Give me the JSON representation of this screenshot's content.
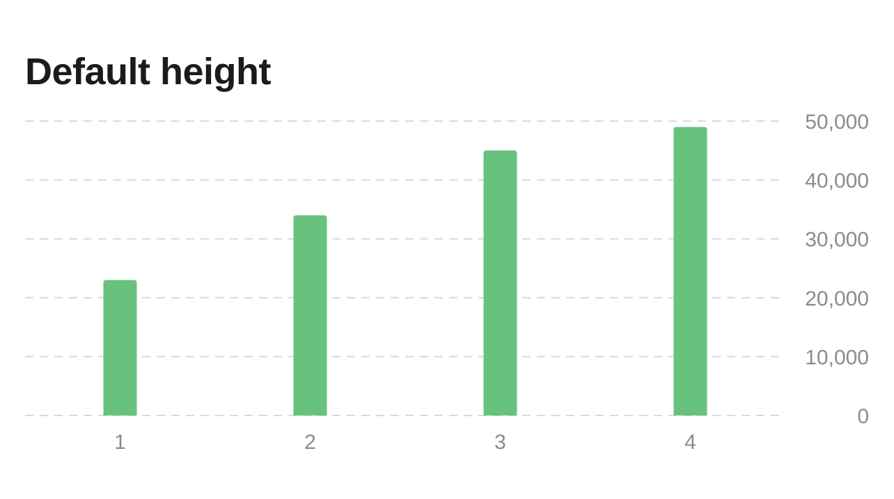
{
  "chart_data": {
    "type": "bar",
    "title": "Default height",
    "categories": [
      "1",
      "2",
      "3",
      "4"
    ],
    "values": [
      23000,
      34000,
      45000,
      49000
    ],
    "ylim": [
      0,
      50000
    ],
    "yticks": [
      0,
      10000,
      20000,
      30000,
      40000,
      50000
    ],
    "ytick_labels": [
      "0",
      "10,000",
      "20,000",
      "30,000",
      "40,000",
      "50,000"
    ],
    "xlabel": "",
    "ylabel": "",
    "grid": true,
    "y_axis_position": "right",
    "bar_color": "#66c27c"
  }
}
